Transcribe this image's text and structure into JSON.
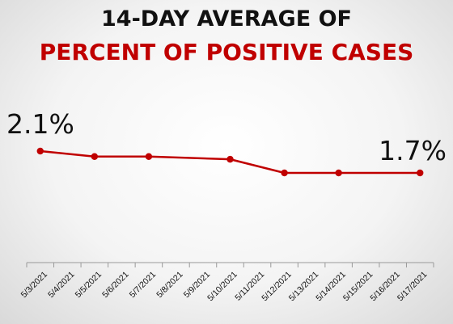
{
  "header": {
    "title_line1": "14-DAY AVERAGE OF",
    "title_line2": "PERCENT OF POSITIVE CASES"
  },
  "colors": {
    "title_primary": "#111111",
    "title_accent": "#c00000",
    "series_line": "#c00000",
    "axis": "#999999",
    "label_text": "#111111"
  },
  "chart_data": {
    "type": "line",
    "title": "14-DAY AVERAGE OF PERCENT OF POSITIVE CASES",
    "xlabel": "",
    "ylabel": "",
    "grid": false,
    "legend": "none",
    "categories": [
      "5/3/2021",
      "5/4/2021",
      "5/5/2021",
      "5/6/2021",
      "5/7/2021",
      "5/8/2021",
      "5/9/2021",
      "5/10/2021",
      "5/11/2021",
      "5/12/2021",
      "5/13/2021",
      "5/14/2021",
      "5/15/2021",
      "5/16/2021",
      "5/17/2021"
    ],
    "series": [
      {
        "values": [
          2.1,
          null,
          2.0,
          null,
          2.0,
          null,
          null,
          1.95,
          null,
          1.7,
          null,
          1.7,
          null,
          null,
          1.7
        ]
      }
    ],
    "ylim": [
      0,
      2.5
    ],
    "annotations": [
      {
        "category": "5/3/2021",
        "text": "2.1%"
      },
      {
        "category": "5/17/2021",
        "text": "1.7%"
      }
    ]
  }
}
